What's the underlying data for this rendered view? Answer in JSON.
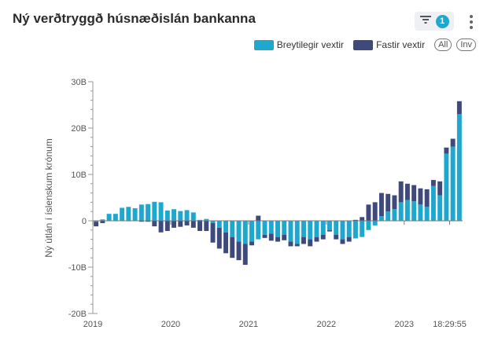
{
  "header": {
    "title": "Ný verðtryggð húsnæðislán bankanna",
    "filter_count": "1"
  },
  "legend": {
    "pill_all": "All",
    "pill_inv": "Inv"
  },
  "colors": {
    "breytilegir": "#1fa8cf",
    "fastir": "#3f4a7a"
  },
  "chart_data": {
    "type": "bar",
    "stacked": true,
    "title": "Ný verðtryggð húsnæðislán bankanna",
    "ylabel": "Ný útlán í íslenskum krónum",
    "ylim": [
      -20,
      30
    ],
    "yticks": [
      {
        "value": 30,
        "label": "30B"
      },
      {
        "value": 20,
        "label": "20B"
      },
      {
        "value": 10,
        "label": "10B"
      },
      {
        "value": 0,
        "label": "0"
      },
      {
        "value": -10,
        "label": "-10B"
      },
      {
        "value": -20,
        "label": "-20B"
      }
    ],
    "xticks": [
      {
        "index": 0,
        "label": "2019"
      },
      {
        "index": 12,
        "label": "2020"
      },
      {
        "index": 24,
        "label": "2021"
      },
      {
        "index": 36,
        "label": "2022"
      },
      {
        "index": 48,
        "label": "2023"
      },
      {
        "index": 55,
        "label": "18:29:55"
      }
    ],
    "series": [
      {
        "name": "Breytilegir vextir",
        "values": [
          -0.2,
          0.3,
          1.5,
          1.5,
          2.8,
          3.0,
          2.7,
          3.5,
          3.6,
          4.1,
          4.0,
          2.2,
          2.5,
          2.1,
          2.3,
          1.8,
          0.2,
          0.4,
          -0.5,
          -1.5,
          -2.5,
          -3.5,
          -4.5,
          -5.0,
          -4.5,
          -4.0,
          -3.0,
          -2.8,
          -3.5,
          -3.0,
          -4.5,
          -5.0,
          -3.5,
          -4.0,
          -3.5,
          -3.0,
          -2.0,
          -3.0,
          -4.0,
          -3.5,
          -3.8,
          -3.5,
          -2.0,
          -1.0,
          1.0,
          2.0,
          2.5,
          4.0,
          4.5,
          4.2,
          3.5,
          3.0,
          7.5,
          5.5,
          14.5,
          16.0,
          23.0
        ]
      },
      {
        "name": "Fastir vextir",
        "values": [
          -1.0,
          -0.5,
          0.0,
          0.0,
          0.0,
          -0.1,
          0.0,
          -0.2,
          -0.2,
          -1.2,
          -2.5,
          -2.2,
          -1.5,
          -1.3,
          -1.0,
          -1.5,
          -2.2,
          -2.2,
          -4.2,
          -4.5,
          -4.5,
          -4.5,
          -4.0,
          -4.5,
          -0.8,
          1.1,
          -0.7,
          -1.5,
          -1.0,
          -1.2,
          -1.0,
          -0.5,
          -1.5,
          -1.5,
          -1.0,
          -1.0,
          -0.3,
          -1.0,
          -1.0,
          -1.0,
          0.2,
          0.8,
          3.5,
          4.0,
          5.0,
          3.8,
          3.0,
          4.5,
          3.5,
          3.5,
          3.5,
          3.8,
          1.3,
          3.0,
          1.3,
          1.7,
          2.8
        ]
      }
    ]
  }
}
